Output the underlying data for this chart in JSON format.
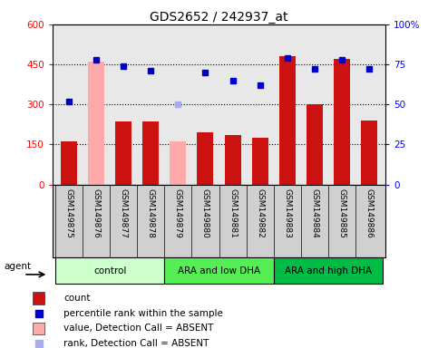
{
  "title": "GDS2652 / 242937_at",
  "samples": [
    "GSM149875",
    "GSM149876",
    "GSM149877",
    "GSM149878",
    "GSM149879",
    "GSM149880",
    "GSM149881",
    "GSM149882",
    "GSM149883",
    "GSM149884",
    "GSM149885",
    "GSM149886"
  ],
  "counts": [
    160,
    460,
    235,
    235,
    160,
    195,
    185,
    175,
    480,
    300,
    470,
    240
  ],
  "percentile_ranks": [
    52,
    78,
    74,
    71,
    50,
    70,
    65,
    62,
    79,
    72,
    78,
    72
  ],
  "absent_bars": [
    false,
    true,
    false,
    false,
    true,
    false,
    false,
    false,
    false,
    false,
    false,
    false
  ],
  "absent_ranks": [
    false,
    false,
    false,
    false,
    true,
    false,
    false,
    false,
    false,
    false,
    false,
    false
  ],
  "groups": [
    {
      "label": "control",
      "start": 0,
      "end": 3,
      "color": "#ccffcc"
    },
    {
      "label": "ARA and low DHA",
      "start": 4,
      "end": 7,
      "color": "#55ee55"
    },
    {
      "label": "ARA and high DHA",
      "start": 8,
      "end": 11,
      "color": "#00bb44"
    }
  ],
  "bar_color_present": "#cc1111",
  "bar_color_absent": "#ffaaaa",
  "rank_color_present": "#0000cc",
  "rank_color_absent": "#aaaaee",
  "ylim_left": [
    0,
    600
  ],
  "ylim_right": [
    0,
    100
  ],
  "yticks_left": [
    0,
    150,
    300,
    450,
    600
  ],
  "ytick_labels_left": [
    "0",
    "150",
    "300",
    "450",
    "600"
  ],
  "yticks_right": [
    0,
    25,
    50,
    75,
    100
  ],
  "ytick_labels_right": [
    "0",
    "25",
    "50",
    "75",
    "100%"
  ],
  "gridlines_at": [
    150,
    300,
    450
  ],
  "legend_items": [
    {
      "label": "count",
      "color": "#cc1111",
      "type": "bar"
    },
    {
      "label": "percentile rank within the sample",
      "color": "#0000cc",
      "type": "square"
    },
    {
      "label": "value, Detection Call = ABSENT",
      "color": "#ffaaaa",
      "type": "bar"
    },
    {
      "label": "rank, Detection Call = ABSENT",
      "color": "#aaaaee",
      "type": "square"
    }
  ],
  "plot_bg": "#e8e8e8",
  "label_bg": "#d0d0d0"
}
